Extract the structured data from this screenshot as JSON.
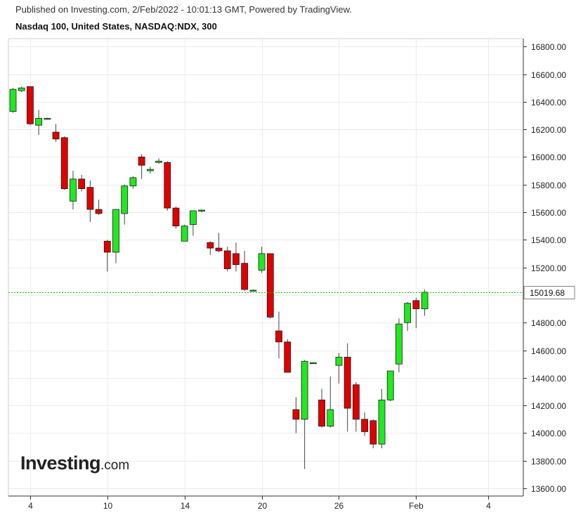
{
  "header": {
    "published": "Published on Investing.com, 2/Feb/2022 - 10:01:13 GMT, Powered by TradingView.",
    "title": "Nasdaq 100, United States, NASDAQ:NDX, 300"
  },
  "watermark": {
    "brand": "Investing",
    "suffix": ".com"
  },
  "colors": {
    "up": "#22e822",
    "down": "#e00000",
    "outline": "#1a1a1a",
    "last_price_line": "#00cc00",
    "grid": "#ececec"
  },
  "chart_data": {
    "type": "candlestick",
    "interval": "300",
    "symbol": "NASDAQ:NDX",
    "ylim": [
      13550,
      16900
    ],
    "y_ticks": [
      "13600.00",
      "13800.00",
      "14000.00",
      "14200.00",
      "14400.00",
      "14600.00",
      "14800.00",
      "15000.00",
      "15200.00",
      "15400.00",
      "15600.00",
      "15800.00",
      "16000.00",
      "16200.00",
      "16400.00",
      "16600.00",
      "16800.00"
    ],
    "x_ticks": [
      {
        "label": "4",
        "slot": 2
      },
      {
        "label": "10",
        "slot": 11
      },
      {
        "label": "14",
        "slot": 20
      },
      {
        "label": "20",
        "slot": 29
      },
      {
        "label": "26",
        "slot": 38
      },
      {
        "label": "Feb",
        "slot": 47
      },
      {
        "label": "4",
        "slot": 55.4
      }
    ],
    "last_price": 15019.68,
    "last_price_label": "15019.68",
    "candles": [
      {
        "slot": 0,
        "o": 16330,
        "h": 16500,
        "l": 16320,
        "c": 16490
      },
      {
        "slot": 1,
        "o": 16480,
        "h": 16510,
        "l": 16470,
        "c": 16500
      },
      {
        "slot": 2,
        "o": 16510,
        "h": 16510,
        "l": 16230,
        "c": 16240
      },
      {
        "slot": 3,
        "o": 16230,
        "h": 16340,
        "l": 16160,
        "c": 16280
      },
      {
        "slot": 4,
        "o": 16280,
        "h": 16285,
        "l": 16270,
        "c": 16280
      },
      {
        "slot": 5,
        "o": 16180,
        "h": 16240,
        "l": 16110,
        "c": 16130
      },
      {
        "slot": 6,
        "o": 16140,
        "h": 16150,
        "l": 15760,
        "c": 15770
      },
      {
        "slot": 7,
        "o": 15680,
        "h": 15900,
        "l": 15620,
        "c": 15840
      },
      {
        "slot": 8,
        "o": 15840,
        "h": 15870,
        "l": 15750,
        "c": 15770
      },
      {
        "slot": 9,
        "o": 15780,
        "h": 15830,
        "l": 15530,
        "c": 15620
      },
      {
        "slot": 10,
        "o": 15620,
        "h": 15690,
        "l": 15580,
        "c": 15590
      },
      {
        "slot": 11,
        "o": 15390,
        "h": 15400,
        "l": 15170,
        "c": 15310
      },
      {
        "slot": 12,
        "o": 15310,
        "h": 15620,
        "l": 15230,
        "c": 15620
      },
      {
        "slot": 13,
        "o": 15590,
        "h": 15800,
        "l": 15510,
        "c": 15790
      },
      {
        "slot": 14,
        "o": 15790,
        "h": 15860,
        "l": 15770,
        "c": 15850
      },
      {
        "slot": 15,
        "o": 16000,
        "h": 16020,
        "l": 15840,
        "c": 15940
      },
      {
        "slot": 16,
        "o": 15900,
        "h": 15930,
        "l": 15880,
        "c": 15910
      },
      {
        "slot": 17,
        "o": 15960,
        "h": 15990,
        "l": 15950,
        "c": 15970
      },
      {
        "slot": 18,
        "o": 15960,
        "h": 15970,
        "l": 15610,
        "c": 15630
      },
      {
        "slot": 19,
        "o": 15630,
        "h": 15640,
        "l": 15480,
        "c": 15500
      },
      {
        "slot": 20,
        "o": 15390,
        "h": 15510,
        "l": 15390,
        "c": 15500
      },
      {
        "slot": 21,
        "o": 15510,
        "h": 15610,
        "l": 15430,
        "c": 15610
      },
      {
        "slot": 22,
        "o": 15610,
        "h": 15620,
        "l": 15600,
        "c": 15615
      },
      {
        "slot": 23,
        "o": 15380,
        "h": 15390,
        "l": 15290,
        "c": 15340
      },
      {
        "slot": 24,
        "o": 15340,
        "h": 15450,
        "l": 15310,
        "c": 15320
      },
      {
        "slot": 25,
        "o": 15320,
        "h": 15350,
        "l": 15170,
        "c": 15190
      },
      {
        "slot": 26,
        "o": 15300,
        "h": 15380,
        "l": 15170,
        "c": 15220
      },
      {
        "slot": 27,
        "o": 15230,
        "h": 15320,
        "l": 15030,
        "c": 15040
      },
      {
        "slot": 28,
        "o": 15035,
        "h": 15040,
        "l": 15030,
        "c": 15035
      },
      {
        "slot": 29,
        "o": 15180,
        "h": 15350,
        "l": 15160,
        "c": 15300
      },
      {
        "slot": 30,
        "o": 15300,
        "h": 15300,
        "l": 14830,
        "c": 14840
      },
      {
        "slot": 31,
        "o": 14740,
        "h": 14880,
        "l": 14540,
        "c": 14660
      },
      {
        "slot": 32,
        "o": 14660,
        "h": 14680,
        "l": 14440,
        "c": 14440
      },
      {
        "slot": 33,
        "o": 14170,
        "h": 14260,
        "l": 14000,
        "c": 14100
      },
      {
        "slot": 34,
        "o": 14100,
        "h": 14530,
        "l": 13740,
        "c": 14520
      },
      {
        "slot": 35,
        "o": 14510,
        "h": 14515,
        "l": 14505,
        "c": 14510
      },
      {
        "slot": 36,
        "o": 14240,
        "h": 14320,
        "l": 14040,
        "c": 14050
      },
      {
        "slot": 37,
        "o": 14050,
        "h": 14410,
        "l": 14040,
        "c": 14170
      },
      {
        "slot": 38,
        "o": 14490,
        "h": 14580,
        "l": 14360,
        "c": 14550
      },
      {
        "slot": 39,
        "o": 14550,
        "h": 14650,
        "l": 14010,
        "c": 14180
      },
      {
        "slot": 40,
        "o": 14350,
        "h": 14370,
        "l": 14010,
        "c": 14100
      },
      {
        "slot": 41,
        "o": 14100,
        "h": 14150,
        "l": 13980,
        "c": 14010
      },
      {
        "slot": 42,
        "o": 14090,
        "h": 14100,
        "l": 13890,
        "c": 13920
      },
      {
        "slot": 43,
        "o": 13920,
        "h": 14320,
        "l": 13890,
        "c": 14240
      },
      {
        "slot": 44,
        "o": 14240,
        "h": 14450,
        "l": 14230,
        "c": 14450
      },
      {
        "slot": 45,
        "o": 14500,
        "h": 14830,
        "l": 14440,
        "c": 14790
      },
      {
        "slot": 46,
        "o": 14800,
        "h": 14950,
        "l": 14740,
        "c": 14940
      },
      {
        "slot": 47,
        "o": 14960,
        "h": 14980,
        "l": 14760,
        "c": 14900
      },
      {
        "slot": 48,
        "o": 14900,
        "h": 15040,
        "l": 14850,
        "c": 15020
      }
    ]
  }
}
